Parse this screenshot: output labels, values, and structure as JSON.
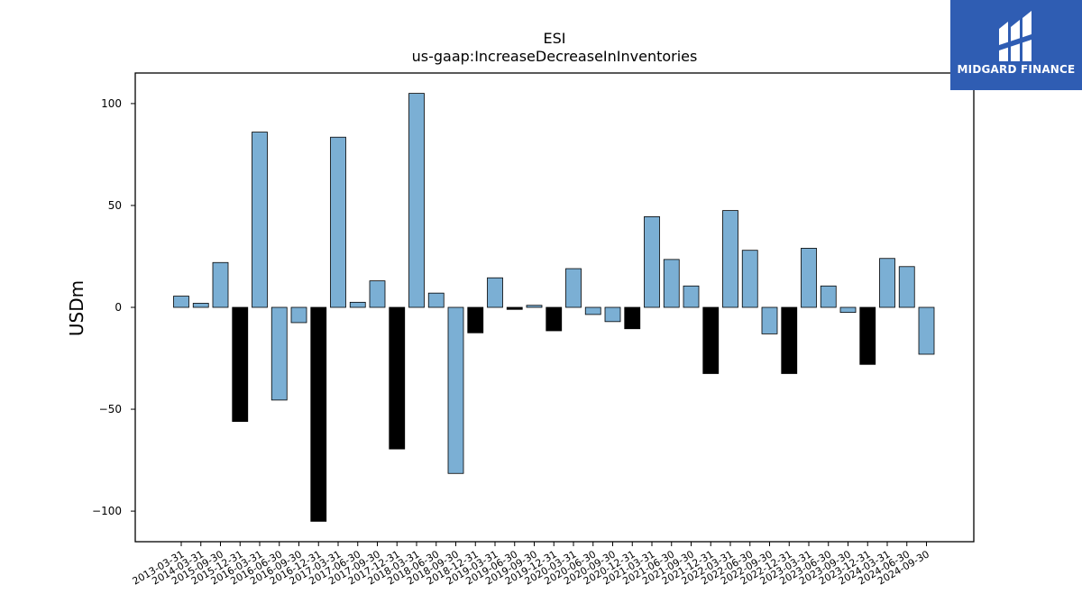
{
  "chart_data": {
    "type": "bar",
    "title": "ESI",
    "subtitle": "us-gaap:IncreaseDecreaseInInventories",
    "ylabel": "USDm",
    "xlabel": "",
    "ylim": [
      -115,
      115
    ],
    "yticks": [
      100,
      50,
      0,
      -50,
      -100
    ],
    "ytick_labels": [
      "100",
      "50",
      "0",
      "−50",
      "−100"
    ],
    "grid": false,
    "categories": [
      "2013-03-31",
      "2014-03-31",
      "2015-09-30",
      "2015-12-31",
      "2016-03-31",
      "2016-06-30",
      "2016-09-30",
      "2016-12-31",
      "2017-03-31",
      "2017-06-30",
      "2017-09-30",
      "2017-12-31",
      "2018-03-31",
      "2018-06-30",
      "2018-09-30",
      "2018-12-31",
      "2019-03-31",
      "2019-06-30",
      "2019-09-30",
      "2019-12-31",
      "2020-03-31",
      "2020-06-30",
      "2020-09-30",
      "2020-12-31",
      "2021-03-31",
      "2021-06-30",
      "2021-09-30",
      "2021-12-31",
      "2022-03-31",
      "2022-06-30",
      "2022-09-30",
      "2022-12-31",
      "2023-03-31",
      "2023-06-30",
      "2023-09-30",
      "2023-12-31",
      "2024-03-31",
      "2024-06-30",
      "2024-09-30"
    ],
    "values": [
      5.5,
      2.0,
      22.0,
      -56.0,
      86.0,
      -45.5,
      -7.5,
      -105.0,
      83.5,
      2.5,
      13.0,
      -69.5,
      105.0,
      7.0,
      -81.5,
      -12.5,
      14.5,
      -1.0,
      1.0,
      -11.5,
      19.0,
      -3.5,
      -7.0,
      -10.5,
      44.5,
      23.5,
      10.5,
      -32.5,
      47.5,
      28.0,
      -13.0,
      -32.5,
      29.0,
      10.5,
      -2.5,
      -28.0,
      24.0,
      20.0,
      -23.0
    ],
    "bar_colors": [
      "blue",
      "blue",
      "blue",
      "black",
      "blue",
      "blue",
      "blue",
      "black",
      "blue",
      "blue",
      "blue",
      "black",
      "blue",
      "blue",
      "blue",
      "black",
      "blue",
      "black",
      "blue",
      "black",
      "blue",
      "blue",
      "blue",
      "black",
      "blue",
      "blue",
      "blue",
      "black",
      "blue",
      "blue",
      "blue",
      "black",
      "blue",
      "blue",
      "blue",
      "black",
      "blue",
      "blue",
      "blue"
    ],
    "colors": {
      "blue": "#7bafd4",
      "black": "#000000",
      "edge": "#000000"
    }
  },
  "logo": {
    "text": "MIDGARD FINANCE",
    "background": "#2f5db3"
  }
}
